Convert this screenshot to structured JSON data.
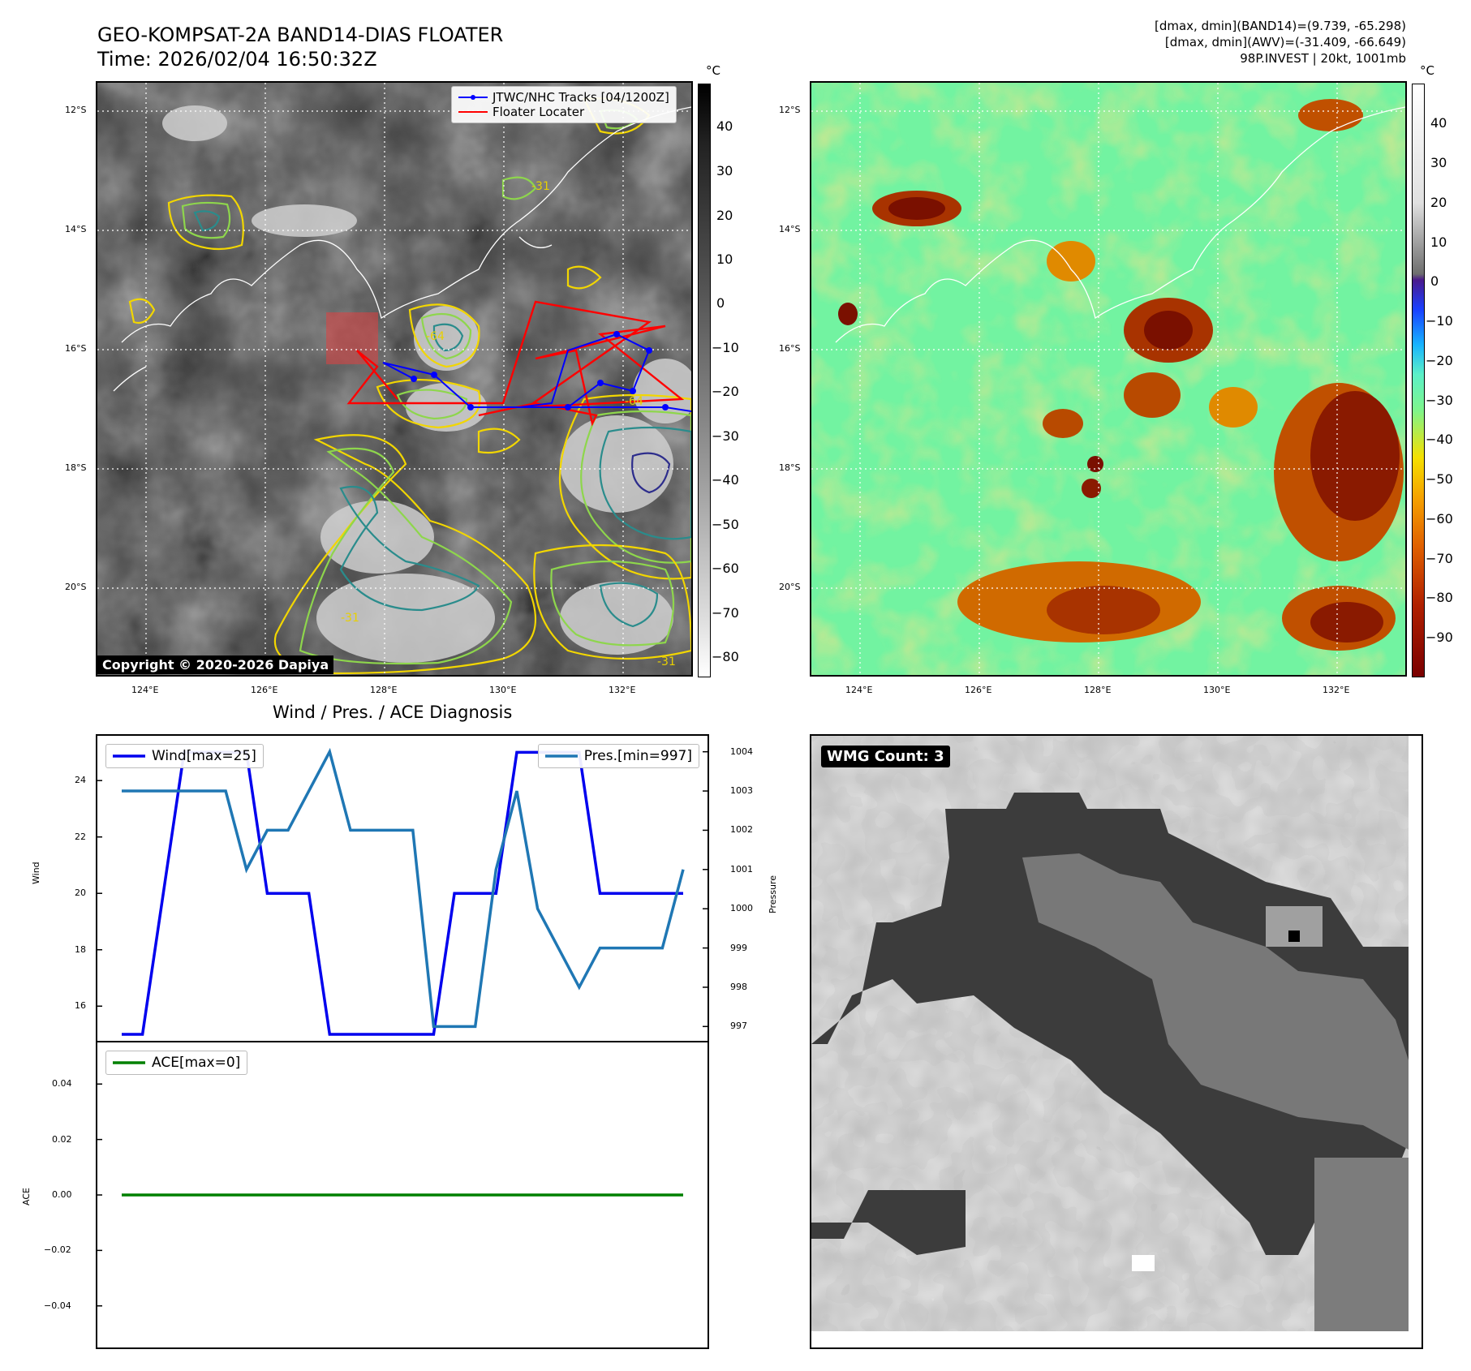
{
  "header": {
    "title_line1": "GEO-KOMPSAT-2A BAND14-DIAS FLOATER",
    "title_line2": "Time: 2026/02/04 16:50:32Z",
    "stat_line1": "[dmax, dmin](BAND14)=(9.739, -65.298)",
    "stat_line2": "[dmax, dmin](AWV)=(-31.409, -66.649)",
    "stat_line3": "98P.INVEST | 20kt, 1001mb"
  },
  "map": {
    "lat_labels": [
      "12°S",
      "14°S",
      "16°S",
      "18°S",
      "20°S"
    ],
    "lon_labels": [
      "124°E",
      "126°E",
      "128°E",
      "130°E",
      "132°E"
    ],
    "copyright": "Copyright © 2020-2026 Dapiya",
    "legend_track": "JTWC/NHC Tracks [04/1200Z]",
    "legend_floater": "Floater Locater",
    "contour_labels": [
      "-31",
      "-64",
      "-31",
      "-64",
      "-31"
    ],
    "track_color": "#0000ff",
    "floater_color": "#ff0000"
  },
  "colorbar_left": {
    "unit": "°C",
    "ticks": [
      "40",
      "30",
      "20",
      "10",
      "0",
      "−10",
      "−20",
      "−30",
      "−40",
      "−50",
      "−60",
      "−70",
      "−80"
    ]
  },
  "colorbar_right": {
    "unit": "°C",
    "ticks": [
      "40",
      "30",
      "20",
      "10",
      "0",
      "−10",
      "−20",
      "−30",
      "−40",
      "−50",
      "−60",
      "−70",
      "−80",
      "−90"
    ]
  },
  "diagnosis": {
    "title": "Wind / Pres. / ACE Diagnosis",
    "wind_label": "Wind",
    "pressure_label": "Pressure",
    "ace_label": "ACE",
    "legend_wind": "Wind[max=25]",
    "legend_pres": "Pres.[min=997]",
    "legend_ace": "ACE[max=0]",
    "wind_color": "#0000ee",
    "pres_color": "#1f77b4",
    "ace_color": "#008000"
  },
  "chart_data": [
    {
      "type": "line",
      "x": [
        0,
        1,
        2,
        3,
        4,
        5,
        6,
        7,
        8,
        9,
        10,
        11,
        12,
        13,
        14,
        15,
        16,
        17,
        18,
        19,
        20,
        21,
        22,
        23,
        24,
        25,
        26,
        27
      ],
      "series": [
        {
          "name": "Wind[max=25]",
          "axis": "left",
          "values": [
            15,
            15,
            20,
            25,
            25,
            25,
            25,
            20,
            20,
            20,
            15,
            15,
            15,
            15,
            15,
            15,
            20,
            20,
            20,
            25,
            25,
            25,
            25,
            20,
            20,
            20,
            20,
            20
          ]
        },
        {
          "name": "Pres.[min=997]",
          "axis": "right",
          "values": [
            1003,
            1003,
            1003,
            1003,
            1003,
            1003,
            1001,
            1002,
            1002,
            1003,
            1004,
            1002,
            1002,
            1002,
            1002,
            997,
            997,
            997,
            1001,
            1003,
            1000,
            999,
            998,
            999,
            999,
            999,
            999,
            1001
          ]
        }
      ],
      "ylabel": "Wind",
      "ylim": [
        15,
        25.3
      ],
      "y_ticks": [
        16,
        18,
        20,
        22,
        24
      ],
      "y2label": "Pressure",
      "y2lim": [
        996.8,
        1004.2
      ],
      "y2_ticks": [
        997,
        998,
        999,
        1000,
        1001,
        1002,
        1003,
        1004
      ]
    },
    {
      "type": "line",
      "x": [
        0,
        27
      ],
      "series": [
        {
          "name": "ACE[max=0]",
          "values": [
            0,
            0
          ]
        }
      ],
      "ylabel": "ACE",
      "ylim": [
        -0.055,
        0.055
      ],
      "y_ticks": [
        "0.04",
        "0.02",
        "0.00",
        "−0.02",
        "−0.04"
      ]
    }
  ],
  "wmg": {
    "label": "WMG Count: 3"
  }
}
